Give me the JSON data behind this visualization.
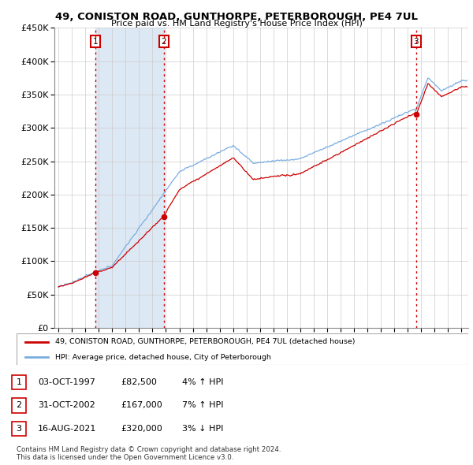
{
  "title": "49, CONISTON ROAD, GUNTHORPE, PETERBOROUGH, PE4 7UL",
  "subtitle": "Price paid vs. HM Land Registry's House Price Index (HPI)",
  "sale_times": [
    1997.75,
    2002.833,
    2021.625
  ],
  "sale_prices": [
    82500,
    167000,
    320000
  ],
  "sale_labels": [
    "1",
    "2",
    "3"
  ],
  "sale_info": [
    [
      "1",
      "03-OCT-1997",
      "£82,500",
      "4% ↑ HPI"
    ],
    [
      "2",
      "31-OCT-2002",
      "£167,000",
      "7% ↑ HPI"
    ],
    [
      "3",
      "16-AUG-2021",
      "£320,000",
      "3% ↓ HPI"
    ]
  ],
  "legend_line1": "49, CONISTON ROAD, GUNTHORPE, PETERBOROUGH, PE4 7UL (detached house)",
  "legend_line2": "HPI: Average price, detached house, City of Peterborough",
  "footer": "Contains HM Land Registry data © Crown copyright and database right 2024.\nThis data is licensed under the Open Government Licence v3.0.",
  "ylim": [
    0,
    450000
  ],
  "yticks": [
    0,
    50000,
    100000,
    150000,
    200000,
    250000,
    300000,
    350000,
    400000,
    450000
  ],
  "xlim": [
    1994.7,
    2025.5
  ],
  "red_color": "#cc0000",
  "blue_color": "#7aade0",
  "shade_color": "#dde8f5",
  "background_color": "#ffffff",
  "grid_color": "#cccccc",
  "label_box_color": "#cc0000"
}
